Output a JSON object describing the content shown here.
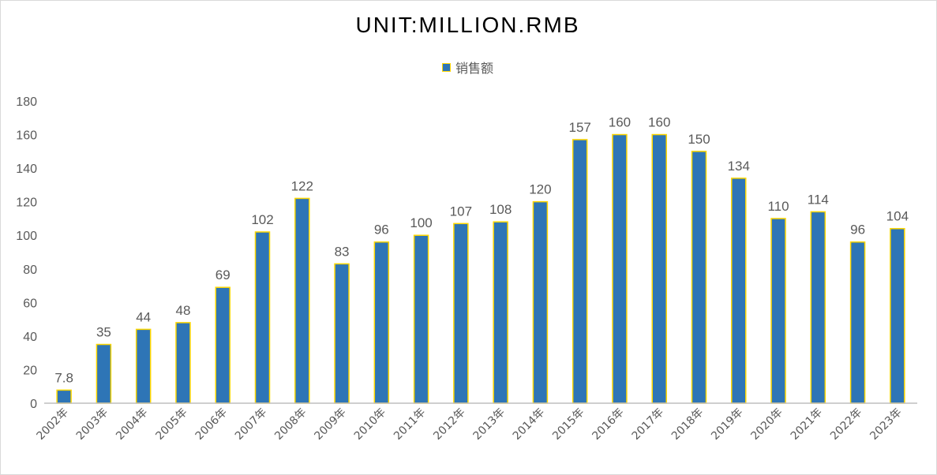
{
  "chart_data": {
    "type": "bar",
    "title": "UNIT:MILLION.RMB",
    "legend": {
      "position": "top",
      "entries": [
        "销售额"
      ]
    },
    "categories": [
      "2002年",
      "2003年",
      "2004年",
      "2005年",
      "2006年",
      "2007年",
      "2008年",
      "2009年",
      "2010年",
      "2011年",
      "2012年",
      "2013年",
      "2014年",
      "2015年",
      "2016年",
      "2017年",
      "2018年",
      "2019年",
      "2020年",
      "2021年",
      "2022年",
      "2023年"
    ],
    "series": [
      {
        "name": "销售额",
        "values": [
          7.8,
          35,
          44,
          48,
          69,
          102,
          122,
          83,
          96,
          100,
          107,
          108,
          120,
          157,
          160,
          160,
          150,
          134,
          110,
          114,
          96,
          104
        ],
        "data_labels": [
          "7.8",
          "35",
          "44",
          "48",
          "69",
          "102",
          "122",
          "83",
          "96",
          "100",
          "107",
          "108",
          "120",
          "157",
          "160",
          "160",
          "150",
          "134",
          "110",
          "114",
          "96",
          "104"
        ]
      }
    ],
    "ylim": [
      0,
      180
    ],
    "yticks": [
      0,
      20,
      40,
      60,
      80,
      100,
      120,
      140,
      160,
      180
    ],
    "grid": false,
    "colors": {
      "bar_fill": "#2e75b6",
      "bar_border": "#ffd700",
      "axis": "#bfbfbf"
    }
  }
}
